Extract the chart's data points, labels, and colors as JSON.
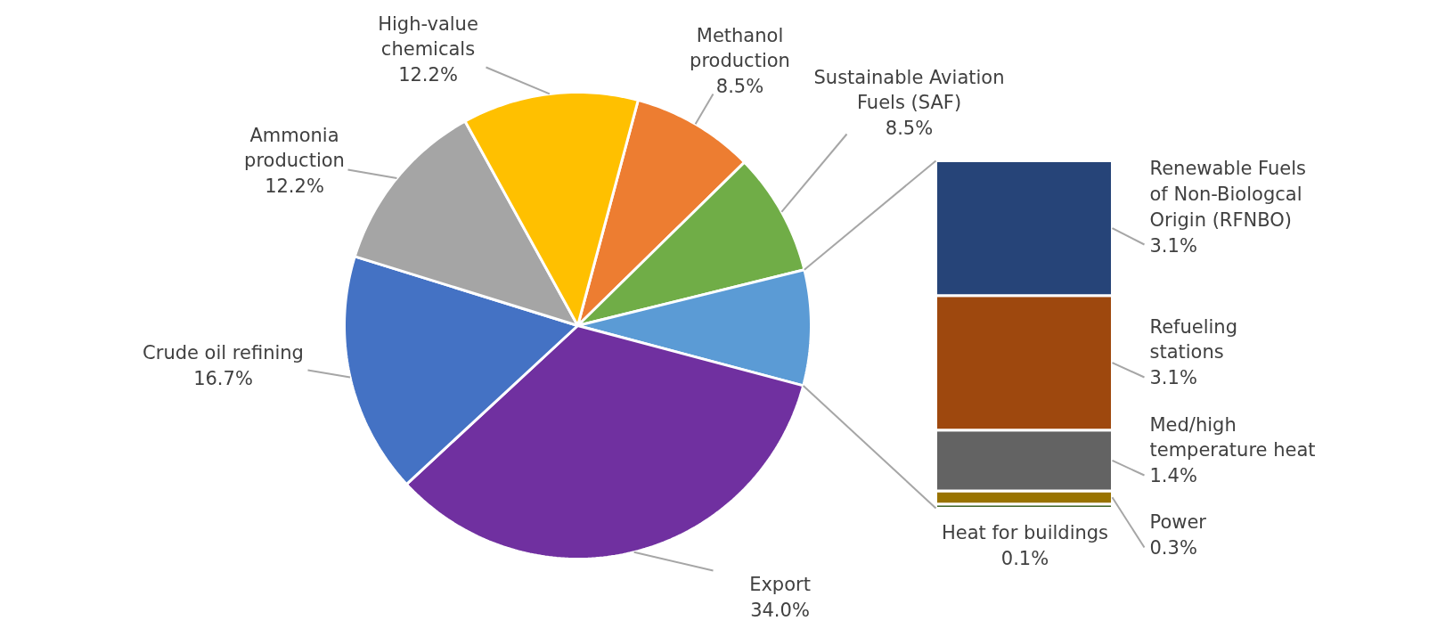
{
  "chart_data": [
    {
      "type": "pie",
      "categories": [
        "Methanol production",
        "Sustainable Aviation Fuels (SAF)",
        null,
        "Export",
        "Crude oil refining",
        "Ammonia production",
        "High-value chemicals"
      ],
      "values": [
        8.5,
        8.5,
        8.0,
        34.0,
        16.7,
        12.2,
        12.2
      ],
      "colors": [
        "#ed7d31",
        "#70ad47",
        "#5b9bd5",
        "#7030a0",
        "#4472c4",
        "#a5a5a5",
        "#ffc000"
      ],
      "value_labels": [
        "8.5%",
        "8.5%",
        null,
        "34.0%",
        "16.7%",
        "12.2%",
        "12.2%"
      ]
    },
    {
      "type": "bar",
      "stacked": true,
      "categories": [
        null
      ],
      "series": [
        {
          "name": "Heat for buildings",
          "color": "#43682b",
          "values": [
            0.1
          ],
          "value_labels": [
            "0.1%"
          ]
        },
        {
          "name": "Power",
          "color": "#997300",
          "values": [
            0.3
          ],
          "value_labels": [
            "0.3%"
          ]
        },
        {
          "name": "Med/high temperature heat",
          "color": "#636363",
          "values": [
            1.4
          ],
          "value_labels": [
            "1.4%"
          ]
        },
        {
          "name": "Refueling stations",
          "color": "#9e480e",
          "values": [
            3.1
          ],
          "value_labels": [
            "3.1%"
          ]
        },
        {
          "name": "Renewable Fuels of Non-Biologcal Origin (RFNBO)",
          "color": "#264478",
          "values": [
            3.1
          ],
          "value_labels": [
            "3.1%"
          ]
        }
      ]
    }
  ]
}
